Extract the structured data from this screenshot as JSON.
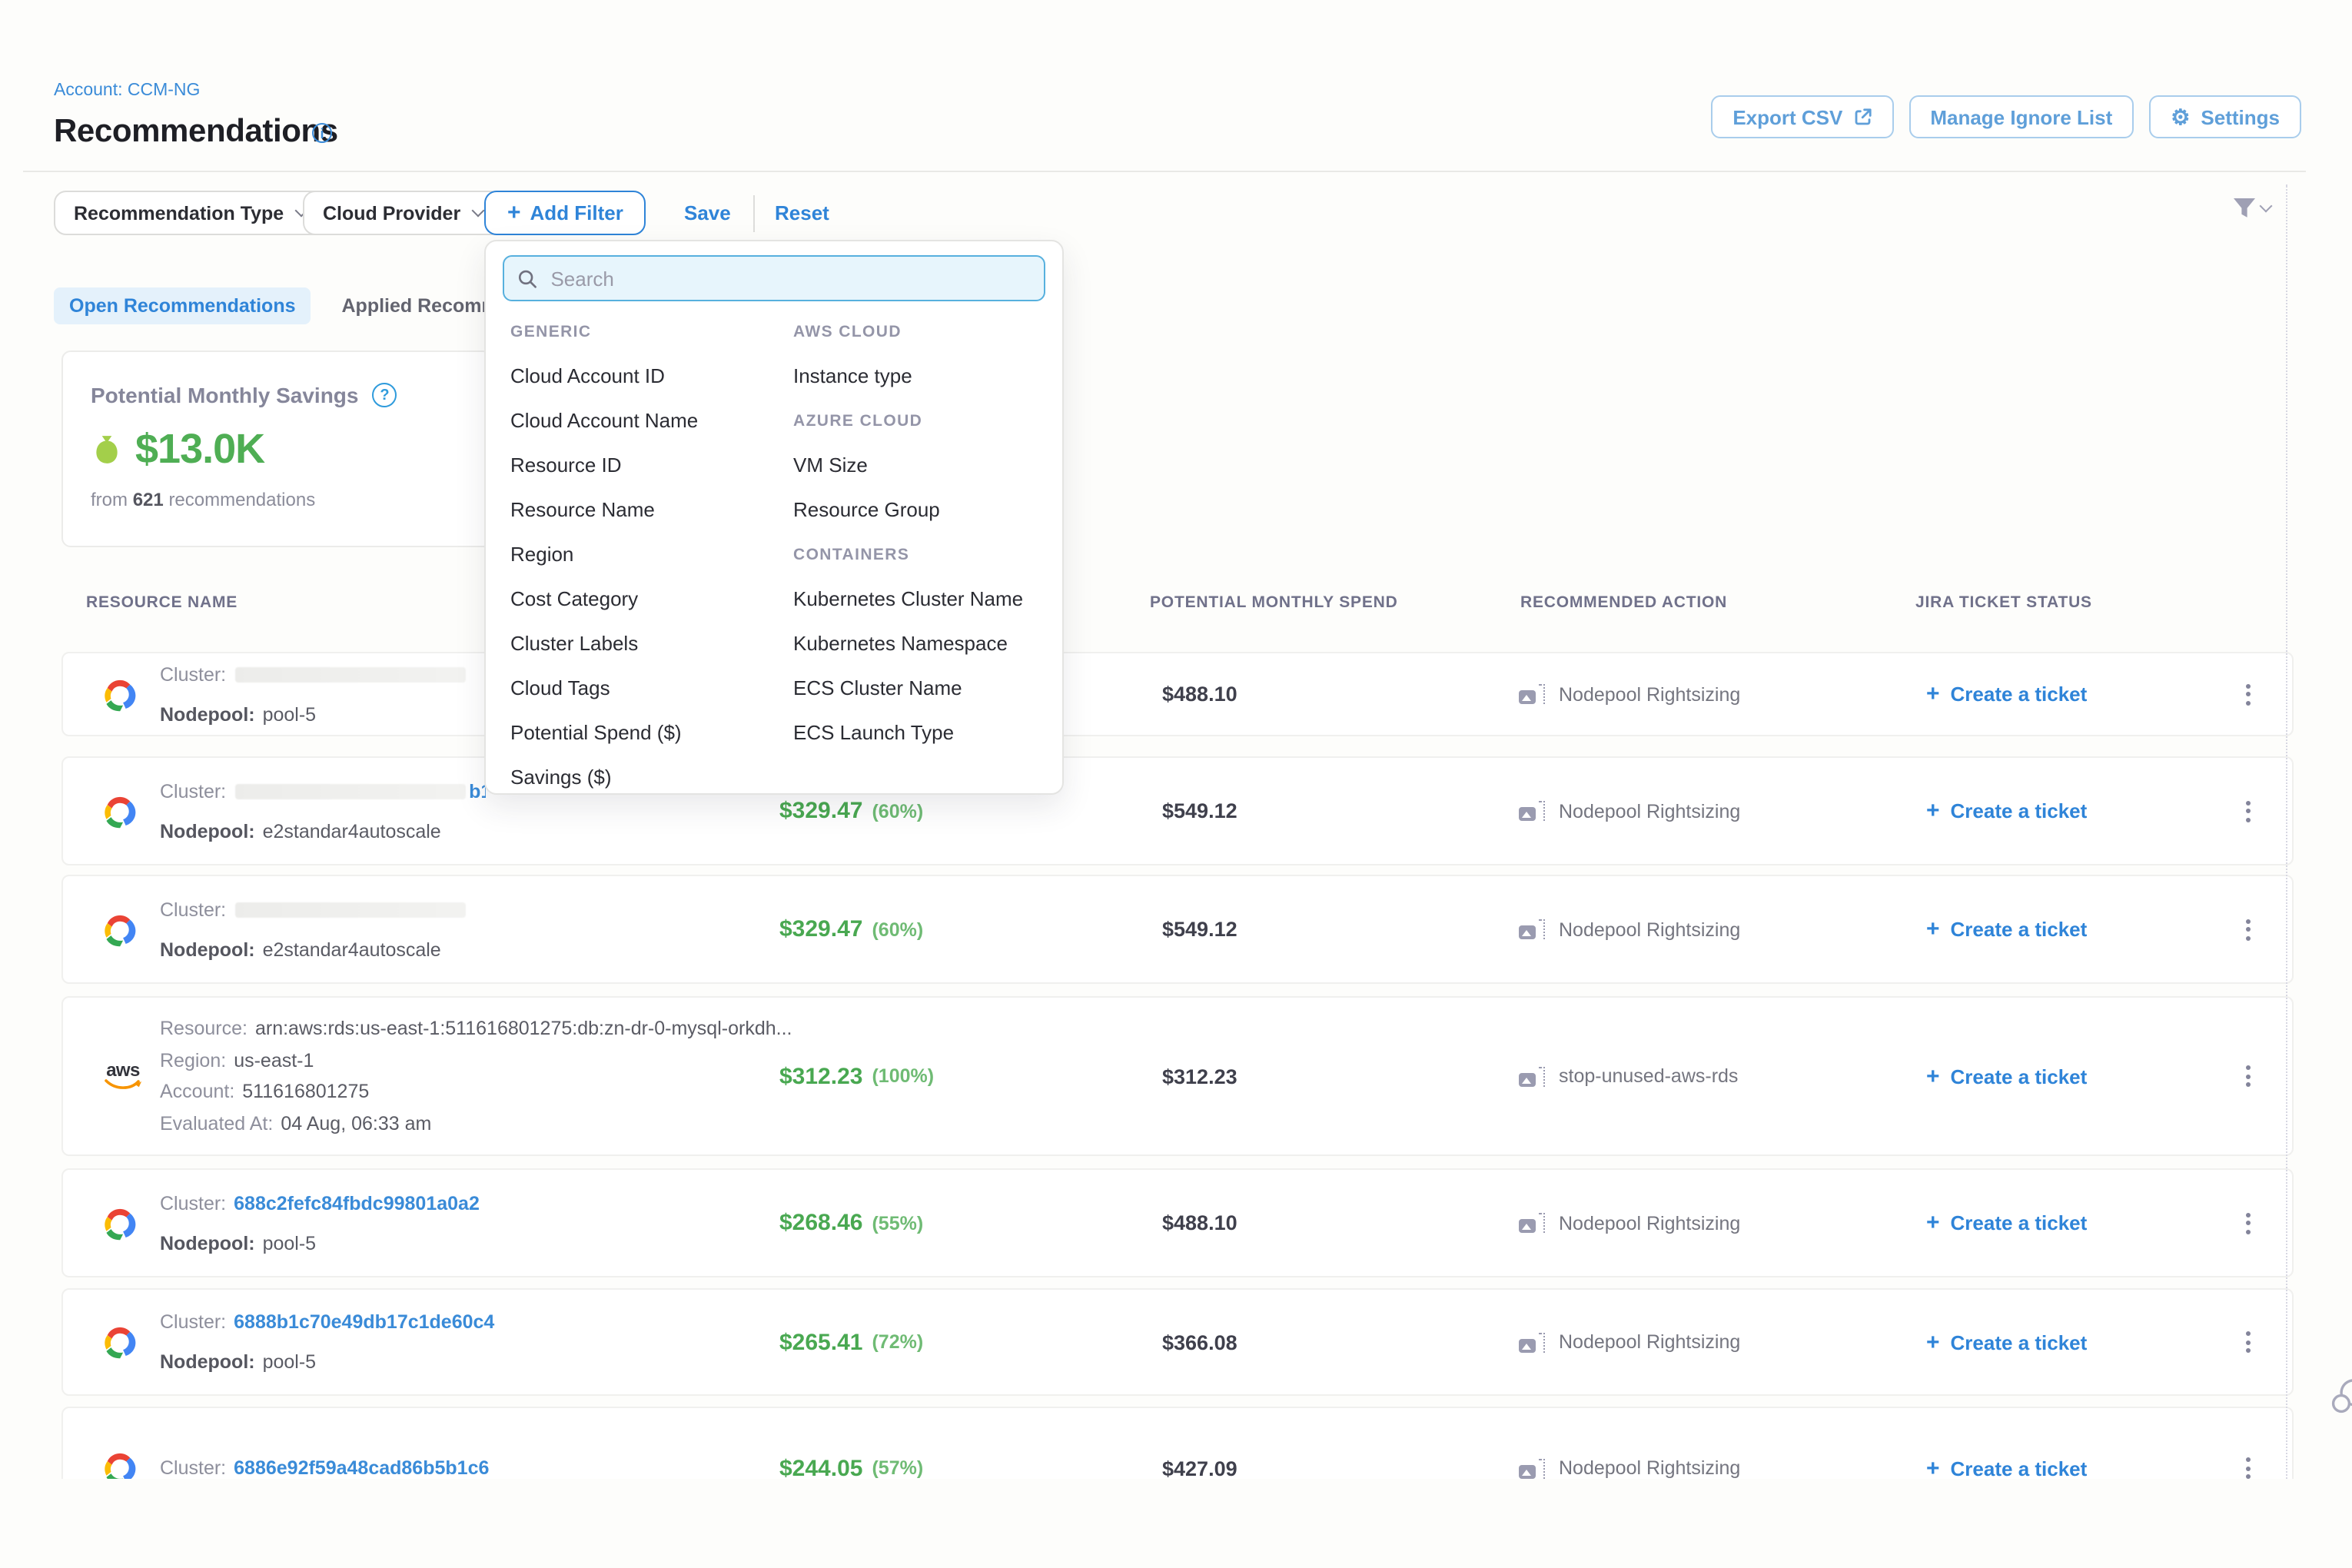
{
  "header": {
    "account_label": "Account: CCM-NG",
    "title": "Recommendations",
    "buttons": [
      {
        "label": "Export CSV",
        "icon": "external-link"
      },
      {
        "label": "Manage Ignore List"
      },
      {
        "label": "Settings",
        "icon": "gear"
      }
    ]
  },
  "filter_bar": {
    "pills": [
      "Recommendation Type",
      "Cloud Provider"
    ],
    "add_filter_label": "Add Filter",
    "save_label": "Save",
    "reset_label": "Reset"
  },
  "tabs": [
    {
      "label": "Open Recommendations",
      "active": true
    },
    {
      "label": "Applied Recommendations",
      "active": false
    }
  ],
  "savings_card": {
    "title": "Potential Monthly Savings",
    "value": "$13.0K",
    "subtext_prefix": "from",
    "count": "621",
    "subtext_suffix": "recommendations"
  },
  "filter_dropdown": {
    "search_placeholder": "Search",
    "columns": [
      {
        "sections": [
          {
            "header": "GENERIC",
            "items": [
              "Cloud Account ID",
              "Cloud Account Name",
              "Resource ID",
              "Resource Name",
              "Region",
              "Cost Category",
              "Cluster Labels",
              "Cloud Tags",
              "Potential Spend ($)",
              "Savings ($)"
            ]
          }
        ]
      },
      {
        "sections": [
          {
            "header": "AWS CLOUD",
            "items": [
              "Instance type"
            ]
          },
          {
            "header": "AZURE CLOUD",
            "items": [
              "VM Size",
              "Resource Group"
            ]
          },
          {
            "header": "CONTAINERS",
            "items": [
              "Kubernetes Cluster Name",
              "Kubernetes Namespace",
              "ECS Cluster Name",
              "ECS Launch Type"
            ]
          }
        ]
      }
    ]
  },
  "table": {
    "columns": [
      "RESOURCE NAME",
      "POTENTIAL MONTHLY SPEND",
      "RECOMMENDED ACTION",
      "JIRA TICKET STATUS"
    ],
    "create_ticket_label": "Create a ticket",
    "rows": [
      {
        "provider": "gcp",
        "lines": [
          {
            "label": "Cluster:",
            "redacted": true
          },
          {
            "label": "Nodepool:",
            "value": "pool-5",
            "label_strong": true
          }
        ],
        "monthly_savings": null,
        "savings_pct": null,
        "potential_monthly_spend": "$488.10",
        "recommended_action": "Nodepool Rightsizing"
      },
      {
        "provider": "gcp",
        "lines": [
          {
            "label": "Cluster:",
            "redacted": true,
            "fragment": "b1"
          },
          {
            "label": "Nodepool:",
            "value": "e2standar4autoscale",
            "label_strong": true
          }
        ],
        "monthly_savings": "$329.47",
        "savings_pct": "(60%)",
        "potential_monthly_spend": "$549.12",
        "recommended_action": "Nodepool Rightsizing"
      },
      {
        "provider": "gcp",
        "lines": [
          {
            "label": "Cluster:",
            "redacted": true
          },
          {
            "label": "Nodepool:",
            "value": "e2standar4autoscale",
            "label_strong": true
          }
        ],
        "monthly_savings": "$329.47",
        "savings_pct": "(60%)",
        "potential_monthly_spend": "$549.12",
        "recommended_action": "Nodepool Rightsizing"
      },
      {
        "provider": "aws",
        "lines": [
          {
            "label": "Resource:",
            "value": "arn:aws:rds:us-east-1:511616801275:db:zn-dr-0-mysql-orkdh..."
          },
          {
            "label": "Region:",
            "value": "us-east-1"
          },
          {
            "label": "Account:",
            "value": "511616801275"
          },
          {
            "label": "Evaluated At:",
            "value": "04 Aug, 06:33 am"
          }
        ],
        "monthly_savings": "$312.23",
        "savings_pct": "(100%)",
        "potential_monthly_spend": "$312.23",
        "recommended_action": "stop-unused-aws-rds"
      },
      {
        "provider": "gcp",
        "lines": [
          {
            "label": "Cluster:",
            "value": "688c2fefc84fbdc99801a0a2",
            "link": true
          },
          {
            "label": "Nodepool:",
            "value": "pool-5",
            "label_strong": true
          }
        ],
        "monthly_savings": "$268.46",
        "savings_pct": "(55%)",
        "potential_monthly_spend": "$488.10",
        "recommended_action": "Nodepool Rightsizing"
      },
      {
        "provider": "gcp",
        "lines": [
          {
            "label": "Cluster:",
            "value": "6888b1c70e49db17c1de60c4",
            "link": true
          },
          {
            "label": "Nodepool:",
            "value": "pool-5",
            "label_strong": true
          }
        ],
        "monthly_savings": "$265.41",
        "savings_pct": "(72%)",
        "potential_monthly_spend": "$366.08",
        "recommended_action": "Nodepool Rightsizing"
      },
      {
        "provider": "gcp",
        "lines": [
          {
            "label": "Cluster:",
            "value": "6886e92f59a48cad86b5b1c6",
            "link": true
          }
        ],
        "monthly_savings": "$244.05",
        "savings_pct": "(57%)",
        "potential_monthly_spend": "$427.09",
        "recommended_action": "Nodepool Rightsizing"
      }
    ]
  },
  "colors": {
    "accent_blue": "#2f84d8",
    "light_blue_button": "#5f9fd9",
    "link_blue": "#3a8bd8",
    "savings_green": "#4fae54",
    "money_bag_green": "#a3cf4a"
  }
}
